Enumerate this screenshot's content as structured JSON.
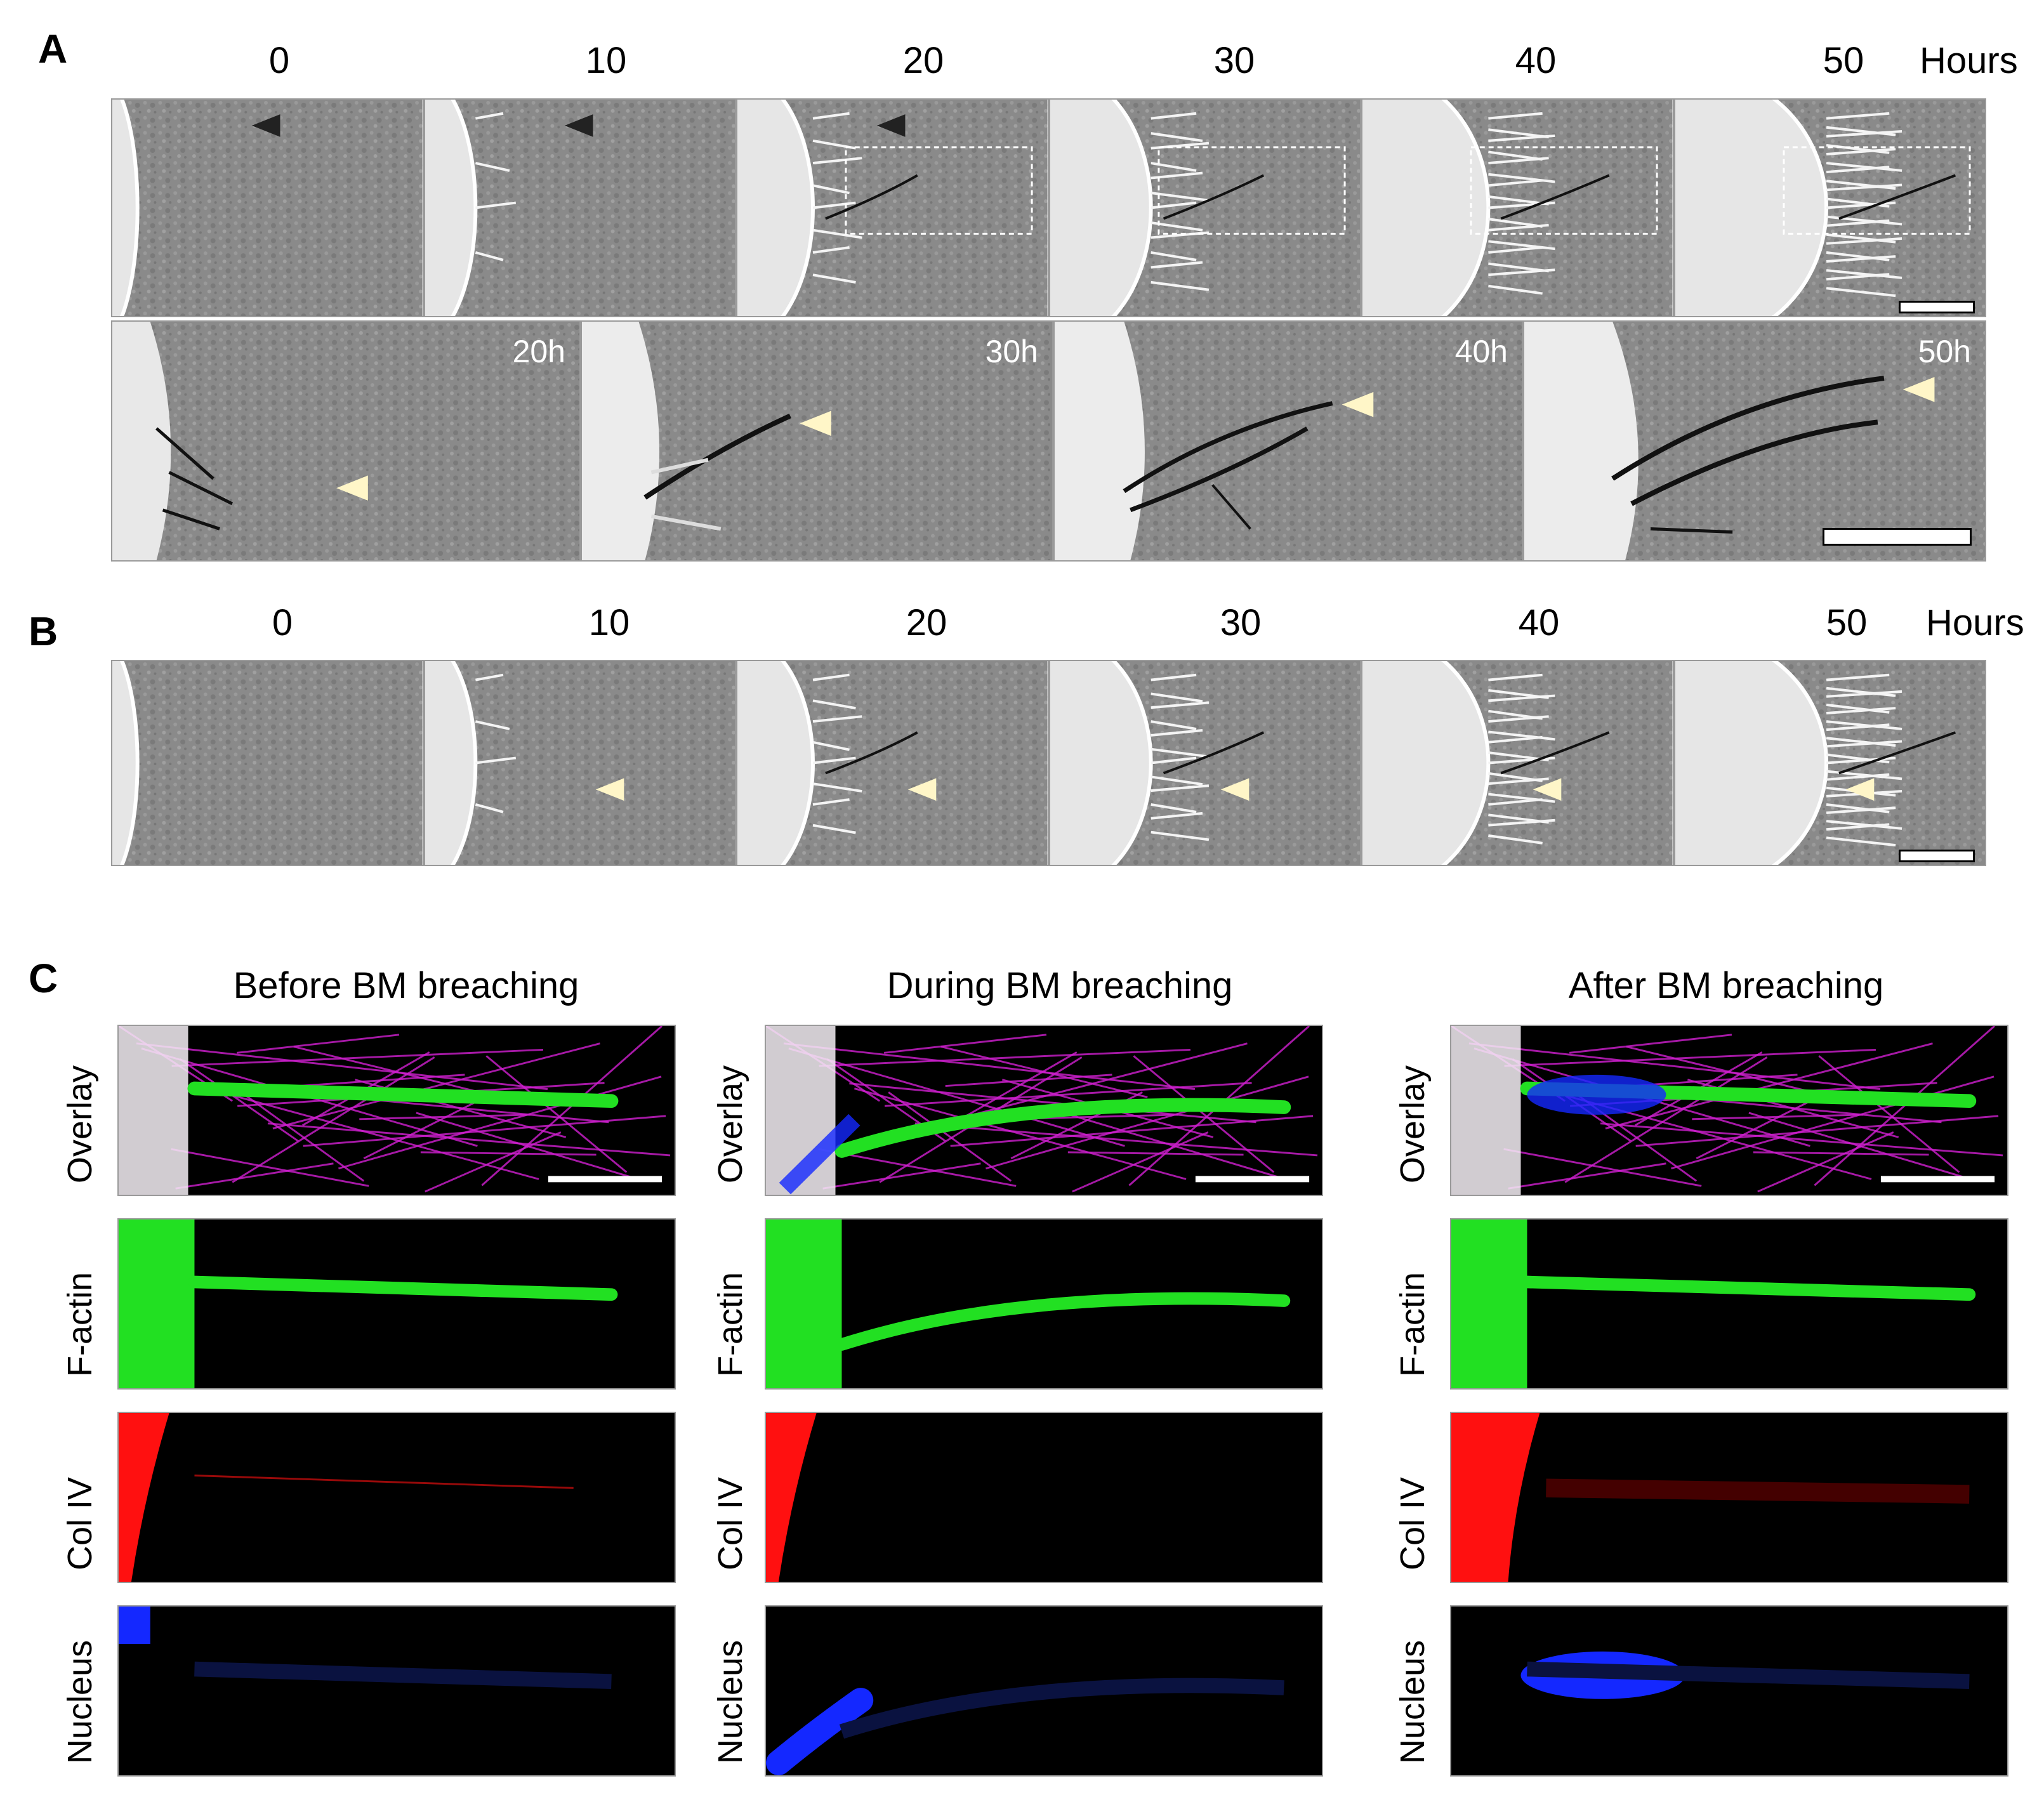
{
  "panel_a": {
    "letter": "A",
    "times": [
      "0",
      "10",
      "20",
      "30",
      "40",
      "50"
    ],
    "unit": "Hours",
    "insets": [
      "20h",
      "30h",
      "40h",
      "50h"
    ]
  },
  "panel_b": {
    "letter": "B",
    "times": [
      "0",
      "10",
      "20",
      "30",
      "40",
      "50"
    ],
    "unit": "Hours"
  },
  "panel_c": {
    "letter": "C",
    "columns": [
      "Before BM breaching",
      "During BM breaching",
      "After BM breaching"
    ],
    "rows": [
      "Overlay",
      "F-actin",
      "Col IV",
      "Nucleus"
    ]
  },
  "colors": {
    "phase_bg": "#8a8a8a",
    "actin": "#22e022",
    "collagen": "#ff1010",
    "nucleus": "#1428ff",
    "matrix": "#d020d0",
    "arrow_dark": "#222222",
    "arrow_light": "#fff6c8"
  }
}
